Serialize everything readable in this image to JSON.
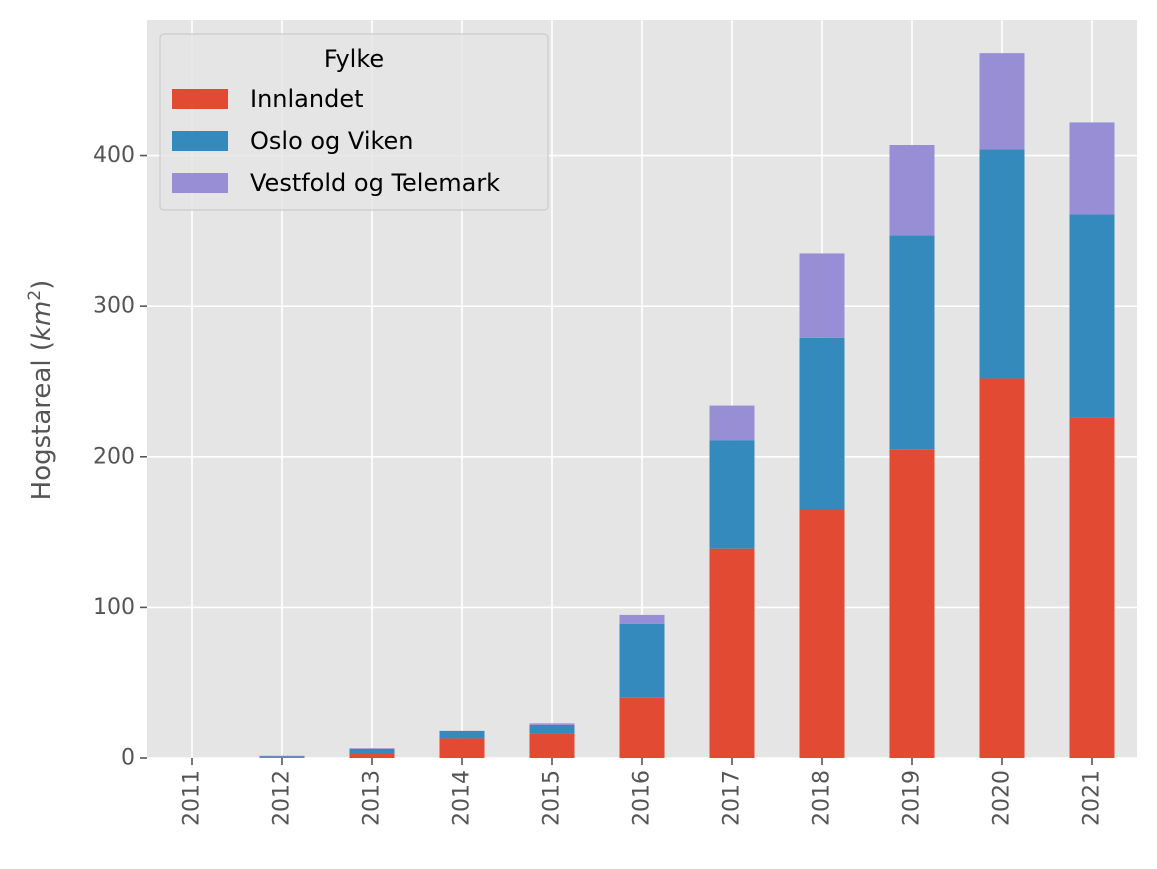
{
  "chart_data": {
    "type": "bar",
    "stacked": true,
    "categories": [
      "2011",
      "2012",
      "2013",
      "2014",
      "2015",
      "2016",
      "2017",
      "2018",
      "2019",
      "2020",
      "2021"
    ],
    "series": [
      {
        "name": "Innlandet",
        "color": "#E24A33",
        "values": [
          0,
          0.5,
          3,
          13,
          16,
          40,
          139,
          165,
          205,
          252,
          226
        ]
      },
      {
        "name": "Oslo og Viken",
        "color": "#348ABD",
        "values": [
          0,
          0.5,
          3,
          5,
          6,
          49,
          72,
          114,
          142,
          152,
          135
        ]
      },
      {
        "name": "Vestfold og Telemark",
        "color": "#988ED5",
        "values": [
          0,
          0.5,
          0.5,
          0,
          1,
          6,
          23,
          56,
          60,
          64,
          61
        ]
      }
    ],
    "xlabel": "",
    "ylabel": "Hogstareal (km²)",
    "ylabel_main": "Hogstareal (",
    "ylabel_unit": "km",
    "ylabel_exp": "2",
    "ylabel_close": ")",
    "ylim": [
      0,
      490
    ],
    "yticks": [
      0,
      100,
      200,
      300,
      400
    ],
    "grid": true,
    "background": "#E5E5E5",
    "legend": {
      "title": "Fylke",
      "placement": "upper-left"
    }
  }
}
